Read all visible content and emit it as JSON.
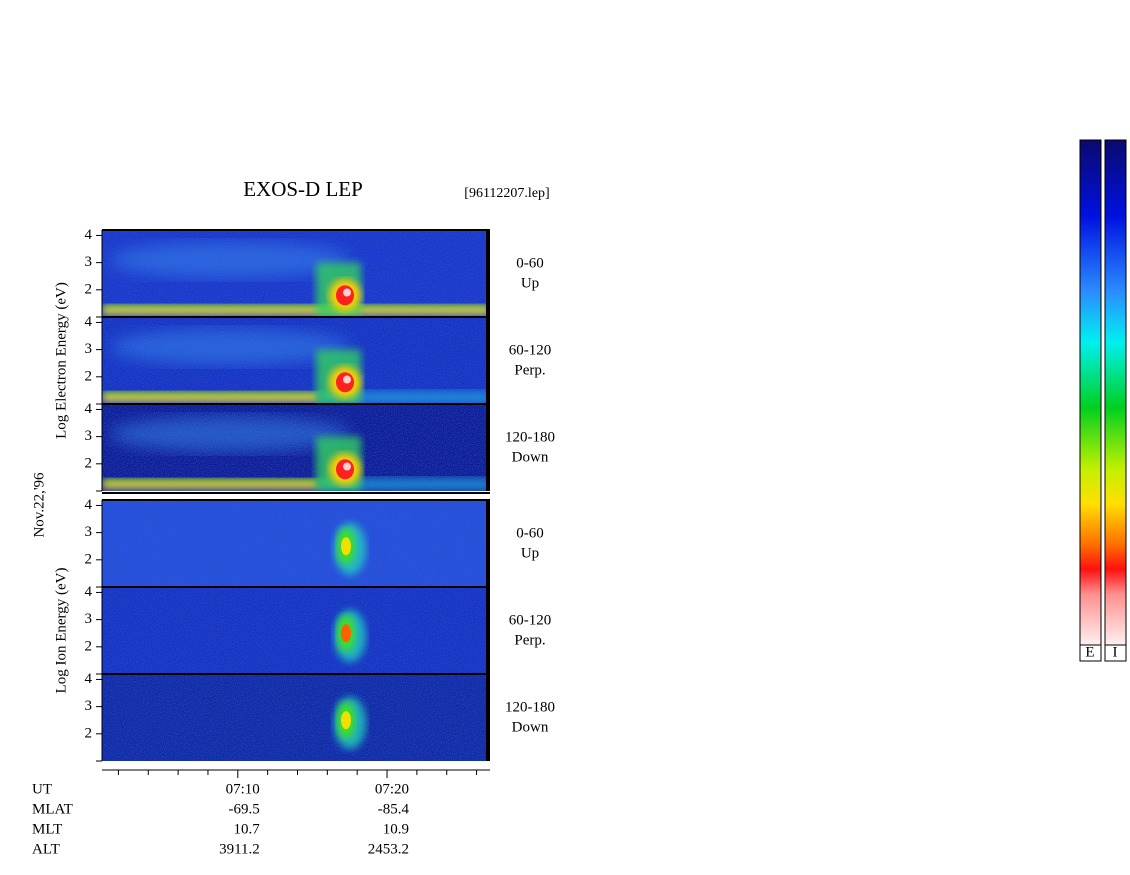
{
  "chart_data": {
    "type": "spectrogram",
    "title": "EXOS-D LEP",
    "file": "[96112207.lep]",
    "date": "Nov.22,'96",
    "groups": [
      {
        "kind": "electron",
        "ylabel": "Log   Electron   Energy (eV)",
        "panels": [
          {
            "range": "0-60",
            "dir": "Up"
          },
          {
            "range": "60-120",
            "dir": "Perp."
          },
          {
            "range": "120-180",
            "dir": "Down"
          }
        ]
      },
      {
        "kind": "ion",
        "ylabel": "Log   Ion   Energy (eV)",
        "panels": [
          {
            "range": "0-60",
            "dir": "Up"
          },
          {
            "range": "60-120",
            "dir": "Perp."
          },
          {
            "range": "120-180",
            "dir": "Down"
          }
        ]
      }
    ],
    "ylim": [
      1,
      4.2
    ],
    "yticks": [
      2,
      3,
      4
    ],
    "xlim": [
      0.9,
      26.9
    ],
    "xticks": [
      {
        "value": 10,
        "label": "07:10"
      },
      {
        "value": 20,
        "label": "07:20"
      }
    ],
    "minor_xticks": [
      2,
      4,
      6,
      8,
      12,
      14,
      16,
      18,
      22,
      24,
      26
    ],
    "ephemeris": {
      "labels": [
        "UT",
        "MLAT",
        "MLT",
        "ALT"
      ],
      "columns": [
        [
          -69.5,
          10.7,
          3911.2
        ],
        [
          -85.4,
          10.9,
          2453.2
        ]
      ]
    },
    "colorbar_labels": [
      "E",
      "I"
    ]
  }
}
